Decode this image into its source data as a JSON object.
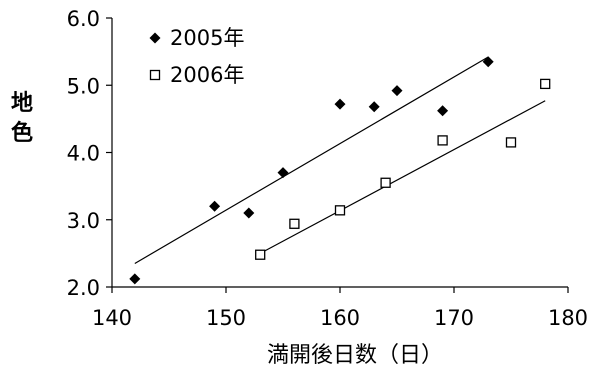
{
  "chart_data": {
    "type": "scatter",
    "title": "",
    "xlabel": "満開後日数（日）",
    "ylabel": "地色",
    "xlim": [
      140,
      180
    ],
    "ylim": [
      2.0,
      6.0
    ],
    "x_ticks": [
      140,
      150,
      160,
      170,
      180
    ],
    "y_ticks": [
      "2.0",
      "3.0",
      "4.0",
      "5.0",
      "6.0"
    ],
    "grid": false,
    "legend_position": "top-left",
    "series": [
      {
        "name": "2005年",
        "marker": "filled-diamond",
        "color": "#000000",
        "points": [
          {
            "x": 142,
            "y": 2.12
          },
          {
            "x": 149,
            "y": 3.2
          },
          {
            "x": 152,
            "y": 3.1
          },
          {
            "x": 155,
            "y": 3.7
          },
          {
            "x": 160,
            "y": 4.72
          },
          {
            "x": 163,
            "y": 4.68
          },
          {
            "x": 165,
            "y": 4.92
          },
          {
            "x": 169,
            "y": 4.62
          },
          {
            "x": 173,
            "y": 5.35
          }
        ],
        "trendline": [
          {
            "x": 142,
            "y": 2.35
          },
          {
            "x": 173,
            "y": 5.42
          }
        ]
      },
      {
        "name": "2006年",
        "marker": "open-square",
        "color": "#000000",
        "points": [
          {
            "x": 153,
            "y": 2.48
          },
          {
            "x": 156,
            "y": 2.94
          },
          {
            "x": 160,
            "y": 3.14
          },
          {
            "x": 164,
            "y": 3.55
          },
          {
            "x": 169,
            "y": 4.18
          },
          {
            "x": 175,
            "y": 4.15
          },
          {
            "x": 178,
            "y": 5.02
          }
        ],
        "trendline": [
          {
            "x": 153,
            "y": 2.5
          },
          {
            "x": 178,
            "y": 4.77
          }
        ]
      }
    ]
  }
}
